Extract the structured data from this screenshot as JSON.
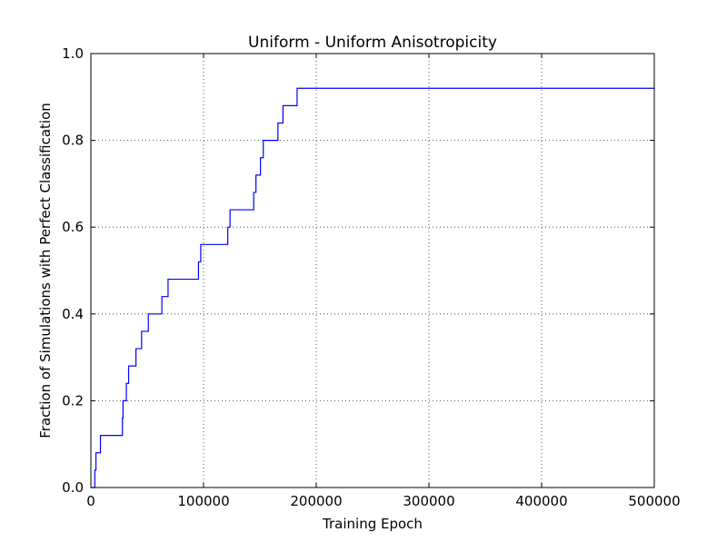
{
  "chart_data": {
    "type": "line",
    "title": "Uniform - Uniform Anisotropicity",
    "xlabel": "Training Epoch",
    "ylabel": "Fraction of Simulations with Perfect Classification",
    "xlim": [
      0,
      500000
    ],
    "ylim": [
      0,
      1.0
    ],
    "xticks": [
      0,
      100000,
      200000,
      300000,
      400000,
      500000
    ],
    "xtick_labels": [
      "0",
      "100000",
      "200000",
      "300000",
      "400000",
      "500000"
    ],
    "yticks": [
      0.0,
      0.2,
      0.4,
      0.6,
      0.8,
      1.0
    ],
    "ytick_labels": [
      "0.0",
      "0.2",
      "0.4",
      "0.6",
      "0.8",
      "1.0"
    ],
    "grid": true,
    "series": [
      {
        "color": "#0000ff",
        "step": true,
        "x": [
          0,
          3500,
          4500,
          6500,
          8500,
          28000,
          28500,
          31500,
          33500,
          40000,
          45000,
          51000,
          57000,
          63000,
          68500,
          95500,
          97500,
          121500,
          123500,
          144500,
          146500,
          150500,
          153000,
          166000,
          170500,
          183000,
          500000
        ],
        "y": [
          0,
          0.04,
          0.08,
          0.08,
          0.12,
          0.16,
          0.2,
          0.24,
          0.28,
          0.32,
          0.36,
          0.4,
          0.4,
          0.44,
          0.48,
          0.52,
          0.56,
          0.6,
          0.64,
          0.68,
          0.72,
          0.76,
          0.8,
          0.84,
          0.88,
          0.92,
          0.92
        ]
      }
    ]
  }
}
